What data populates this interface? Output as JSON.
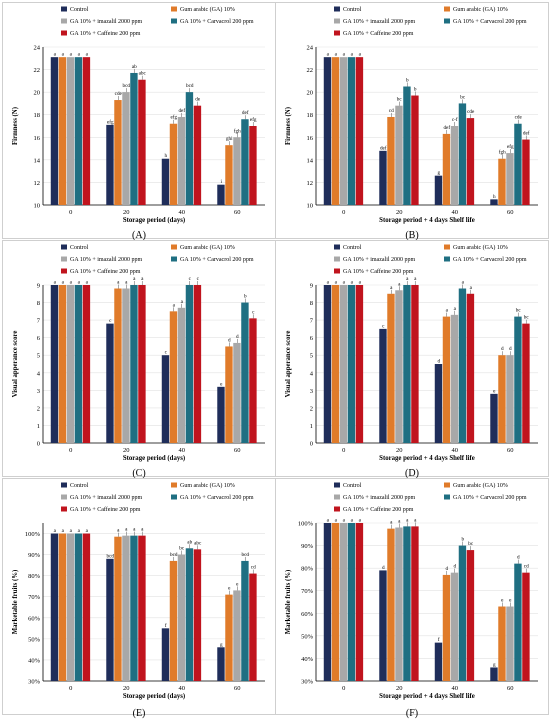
{
  "colors": {
    "Control": "#1f2d5a",
    "Gum arabic (GA) 10%": "#e07b2a",
    "GA 10% + imazalil 2000 ppm": "#a8a8a8",
    "GA 10% + Carvacrol 200 ppm": "#1f6f82",
    "GA 10% + Caffeine 200 ppm": "#c0141e"
  },
  "panels": [
    {
      "label": "(A)",
      "chart_data": {
        "type": "bar",
        "categories": [
          "0",
          "20",
          "40",
          "60"
        ],
        "xlabel": "Storage period  (days)",
        "ylabel": "Firmness (N)",
        "ylim": [
          10,
          24
        ],
        "ticks": [
          10,
          12,
          14,
          16,
          18,
          20,
          22,
          24
        ],
        "series": [
          {
            "name": "Control",
            "values": [
              23.1,
              17.1,
              14.1,
              11.8
            ],
            "labels": [
              "a",
              "efg",
              "h",
              "i"
            ]
          },
          {
            "name": "Gum arabic (GA) 10%",
            "values": [
              23.1,
              19.3,
              17.2,
              15.3
            ],
            "labels": [
              "a",
              "cde",
              "efg",
              "ghi"
            ]
          },
          {
            "name": "GA 10% + imazalil 2000 ppm",
            "values": [
              23.1,
              20.0,
              17.8,
              16.0
            ],
            "labels": [
              "a",
              "bcd",
              "def",
              "fgh"
            ]
          },
          {
            "name": "GA 10% + Carvacrol 200 ppm",
            "values": [
              23.1,
              21.7,
              20.0,
              17.6
            ],
            "labels": [
              "a",
              "ab",
              "bcd",
              "def"
            ]
          },
          {
            "name": "GA 10% + Caffeine 200 ppm",
            "values": [
              23.1,
              21.1,
              18.8,
              17.0
            ],
            "labels": [
              "a",
              "abc",
              "de",
              "efg"
            ]
          }
        ]
      }
    },
    {
      "label": "(B)",
      "chart_data": {
        "type": "bar",
        "categories": [
          "0",
          "20",
          "40",
          "60"
        ],
        "xlabel": "Storage period + 4 days Shelf life",
        "ylabel": "Firmness (N)",
        "ylim": [
          10,
          24
        ],
        "ticks": [
          10,
          12,
          14,
          16,
          18,
          20,
          22,
          24
        ],
        "series": [
          {
            "name": "Control",
            "values": [
              23.1,
              14.8,
              12.6,
              10.5
            ],
            "labels": [
              "a",
              "def",
              "g",
              "h"
            ]
          },
          {
            "name": "Gum arabic (GA) 10%",
            "values": [
              23.1,
              17.8,
              16.3,
              14.1
            ],
            "labels": [
              "a",
              "cd",
              "def",
              "fgh"
            ]
          },
          {
            "name": "GA 10% + imazalil 2000 ppm",
            "values": [
              23.1,
              18.8,
              17.0,
              14.6
            ],
            "labels": [
              "a",
              "bc",
              "c-f",
              "efg"
            ]
          },
          {
            "name": "GA 10% + Carvacrol 200 ppm",
            "values": [
              23.1,
              20.5,
              19.0,
              17.2
            ],
            "labels": [
              "a",
              "b",
              "bc",
              "cde"
            ]
          },
          {
            "name": "GA 10% + Caffeine 200 ppm",
            "values": [
              23.1,
              19.7,
              17.7,
              15.8
            ],
            "labels": [
              "a",
              "b",
              "cde",
              "def"
            ]
          }
        ]
      }
    },
    {
      "label": "(C)",
      "chart_data": {
        "type": "bar",
        "categories": [
          "0",
          "20",
          "40",
          "60"
        ],
        "xlabel": "Storage period  (days)",
        "ylabel": "Visual apperance score",
        "ylim": [
          0,
          9
        ],
        "ticks": [
          0,
          1,
          2,
          3,
          4,
          5,
          6,
          7,
          8,
          9
        ],
        "series": [
          {
            "name": "Control",
            "values": [
              9,
              6.8,
              5.0,
              3.2
            ],
            "labels": [
              "a",
              "c",
              "c",
              "e"
            ]
          },
          {
            "name": "Gum arabic (GA) 10%",
            "values": [
              9,
              8.8,
              7.5,
              5.5
            ],
            "labels": [
              "a",
              "a",
              "a",
              "d"
            ]
          },
          {
            "name": "GA 10% + imazalil 2000 ppm",
            "values": [
              9,
              8.8,
              7.7,
              5.7
            ],
            "labels": [
              "a",
              "a",
              "a",
              "d"
            ]
          },
          {
            "name": "GA 10% + Carvacrol 200 ppm",
            "values": [
              9,
              9,
              9,
              8.0
            ],
            "labels": [
              "a",
              "a",
              "c",
              "b"
            ]
          },
          {
            "name": "GA 10% + Caffeine 200 ppm",
            "values": [
              9,
              9,
              9,
              7.1
            ],
            "labels": [
              "a",
              "a",
              "c",
              "c"
            ]
          }
        ]
      }
    },
    {
      "label": "(D)",
      "chart_data": {
        "type": "bar",
        "categories": [
          "0",
          "20",
          "40",
          "60"
        ],
        "xlabel": "Storage period  + 4 days Shelf life",
        "ylabel": "Visual apperance score",
        "ylim": [
          0,
          9
        ],
        "ticks": [
          0,
          1,
          2,
          3,
          4,
          5,
          6,
          7,
          8,
          9
        ],
        "series": [
          {
            "name": "Control",
            "values": [
              9,
              6.5,
              4.5,
              2.8
            ],
            "labels": [
              "a",
              "c",
              "d",
              "e"
            ]
          },
          {
            "name": "Gum arabic (GA) 10%",
            "values": [
              9,
              8.5,
              7.2,
              5.0
            ],
            "labels": [
              "a",
              "a",
              "a",
              "d"
            ]
          },
          {
            "name": "GA 10% + imazalil 2000 ppm",
            "values": [
              9,
              8.7,
              7.3,
              5.0
            ],
            "labels": [
              "a",
              "a",
              "a",
              "d"
            ]
          },
          {
            "name": "GA 10% + Carvacrol 200 ppm",
            "values": [
              9,
              9,
              8.8,
              7.2
            ],
            "labels": [
              "a",
              "a",
              "a",
              "bc"
            ]
          },
          {
            "name": "GA 10% + Caffeine 200 ppm",
            "values": [
              9,
              9,
              8.5,
              6.8
            ],
            "labels": [
              "a",
              "a",
              "a",
              "bc"
            ]
          }
        ]
      }
    },
    {
      "label": "(E)",
      "chart_data": {
        "type": "bar",
        "categories": [
          "0",
          "20",
          "40",
          "60"
        ],
        "xlabel": "Storage period  (days)",
        "ylabel": "Marketable fruits (%)",
        "ylim": [
          30,
          105
        ],
        "ticks": [
          30,
          40,
          50,
          60,
          70,
          80,
          90,
          100
        ],
        "ticksuffix": "%",
        "series": [
          {
            "name": "Control",
            "values": [
              100,
              88,
              55,
              46
            ],
            "labels": [
              "a",
              "bcd",
              "f",
              "g"
            ]
          },
          {
            "name": "Gum arabic (GA) 10%",
            "values": [
              100,
              98.5,
              87,
              71
            ],
            "labels": [
              "a",
              "a",
              "bcd",
              "e"
            ]
          },
          {
            "name": "GA 10% + imazalil 2000 ppm",
            "values": [
              100,
              99,
              90,
              73
            ],
            "labels": [
              "a",
              "a",
              "bc",
              "e"
            ]
          },
          {
            "name": "GA 10% + Carvacrol 200 ppm",
            "values": [
              100,
              99,
              93,
              87
            ],
            "labels": [
              "a",
              "a",
              "ab",
              "bcd"
            ]
          },
          {
            "name": "GA 10% + Caffeine 200 ppm",
            "values": [
              100,
              99,
              92.5,
              81
            ],
            "labels": [
              "a",
              "a",
              "abc",
              "cd"
            ]
          }
        ]
      }
    },
    {
      "label": "(F)",
      "chart_data": {
        "type": "bar",
        "categories": [
          "0",
          "20",
          "40",
          "60"
        ],
        "xlabel": "Storage period + 4 days Shelf life",
        "ylabel": "Marketable fruits (%)",
        "ylim": [
          30,
          100
        ],
        "ticks": [
          30,
          40,
          50,
          60,
          70,
          80,
          90,
          100
        ],
        "ticksuffix": "%",
        "series": [
          {
            "name": "Control",
            "values": [
              100,
              79,
              47,
              36
            ],
            "labels": [
              "a",
              "d",
              "f",
              "g"
            ]
          },
          {
            "name": "Gum arabic (GA) 10%",
            "values": [
              100,
              97.5,
              77,
              63
            ],
            "labels": [
              "a",
              "a",
              "d",
              "e"
            ]
          },
          {
            "name": "GA 10% + imazalil 2000 ppm",
            "values": [
              100,
              98,
              78,
              63
            ],
            "labels": [
              "a",
              "a",
              "d",
              "e"
            ]
          },
          {
            "name": "GA 10% + Carvacrol 200 ppm",
            "values": [
              100,
              98.5,
              90,
              82
            ],
            "labels": [
              "a",
              "a",
              "b",
              "d"
            ]
          },
          {
            "name": "GA 10% + Caffeine 200 ppm",
            "values": [
              100,
              98.5,
              88,
              78
            ],
            "labels": [
              "a",
              "a",
              "bc",
              "cd"
            ]
          }
        ]
      }
    }
  ]
}
